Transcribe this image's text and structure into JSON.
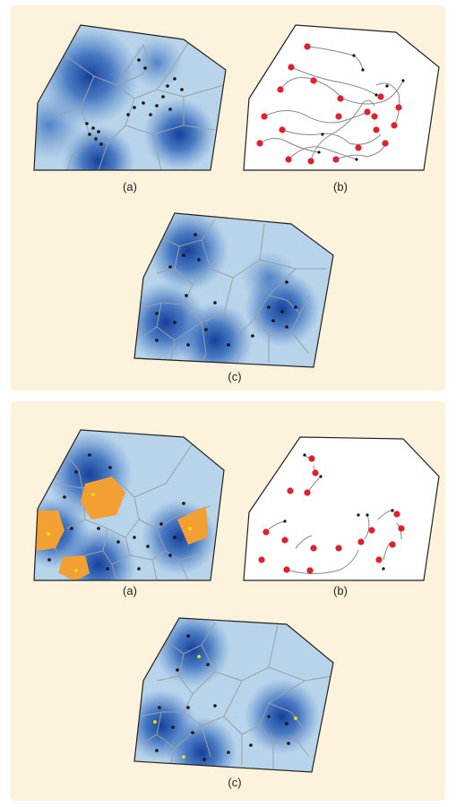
{
  "panels": [
    {
      "id": "top",
      "captions": {
        "a": "(a)",
        "b": "(b)",
        "c": "(c)"
      }
    },
    {
      "id": "bottom",
      "captions": {
        "a": "(a)",
        "b": "(b)",
        "c": "(c)"
      }
    }
  ],
  "colors": {
    "panel_background": "#fdf2db",
    "region_light": "#b8d4ea",
    "region_dark": "#1e4fa8",
    "voronoi_lines": "#9aa0a6",
    "agent_dots": "#111111",
    "robot_markers": "#e0202a",
    "highlight_cells": "#f2a034",
    "highlight_dots": "#f5e600"
  }
}
